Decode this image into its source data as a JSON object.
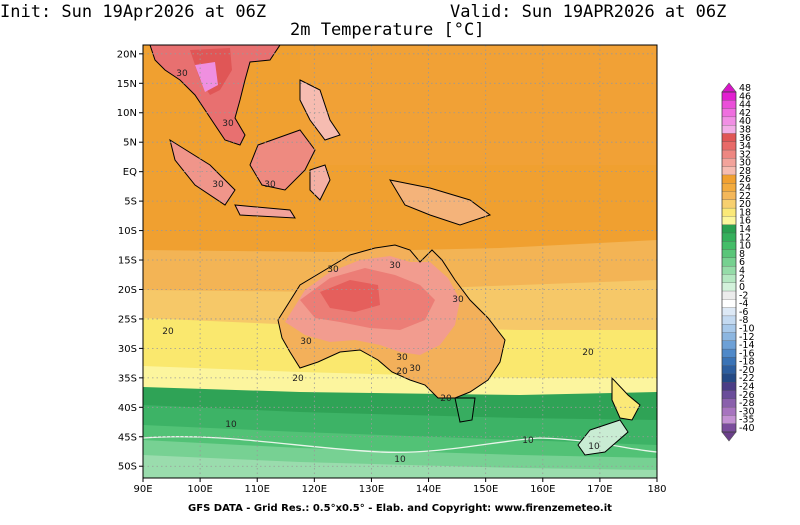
{
  "header": {
    "init": "Init: Sun 19Apr2026 at 06Z",
    "valid": "Valid: Sun 19APR2026 at 06Z",
    "title": "2m Temperature [°C]"
  },
  "axes": {
    "lat_labels": [
      "20N",
      "15N",
      "10N",
      "5N",
      "EQ",
      "5S",
      "10S",
      "15S",
      "20S",
      "25S",
      "30S",
      "35S",
      "40S",
      "45S",
      "50S"
    ],
    "lon_labels": [
      "90E",
      "100E",
      "110E",
      "120E",
      "130E",
      "140E",
      "150E",
      "160E",
      "170E",
      "180"
    ]
  },
  "colorbar": {
    "labels": [
      "48",
      "46",
      "44",
      "42",
      "40",
      "38",
      "36",
      "34",
      "32",
      "30",
      "28",
      "26",
      "24",
      "22",
      "20",
      "18",
      "16",
      "14",
      "12",
      "10",
      "8",
      "6",
      "4",
      "2",
      "0",
      "-2",
      "-4",
      "-6",
      "-8",
      "-10",
      "-12",
      "-14",
      "-16",
      "-18",
      "-20",
      "-22",
      "-24",
      "-26",
      "-28",
      "-30",
      "-35",
      "-40"
    ],
    "colors": [
      "#e21fd1",
      "#ea4fd9",
      "#ef6fdf",
      "#f18fe4",
      "#f3aee7",
      "#e05656",
      "#e86a68",
      "#ee8781",
      "#f2a39b",
      "#f6bcb1",
      "#f1a030",
      "#f3ab3e",
      "#f4b75a",
      "#f7d070",
      "#fbe978",
      "#fcf79c",
      "#2aa150",
      "#35b05c",
      "#45bd69",
      "#5ac679",
      "#76d190",
      "#95dca8",
      "#b5e8c2",
      "#d3f2db",
      "#ececec",
      "#ffffff",
      "#dde9f6",
      "#c4daf1",
      "#a8c9ea",
      "#8cb6e0",
      "#6da0d6",
      "#4f89c9",
      "#3a73b6",
      "#2d5e9f",
      "#244a86",
      "#4b3d86",
      "#6a4d9a",
      "#8a60ac",
      "#a774bf",
      "#c391d3",
      "#7a4d9c"
    ]
  },
  "contour_labels": [
    "30",
    "30",
    "30",
    "30",
    "30",
    "30",
    "30",
    "30",
    "30",
    "30",
    "20",
    "20",
    "20",
    "20",
    "20",
    "10",
    "10",
    "10",
    "10"
  ],
  "footer": "GFS DATA - Grid Res.: 0.5°x0.5° - Elab. and Copyright: www.firenzemeteo.it"
}
